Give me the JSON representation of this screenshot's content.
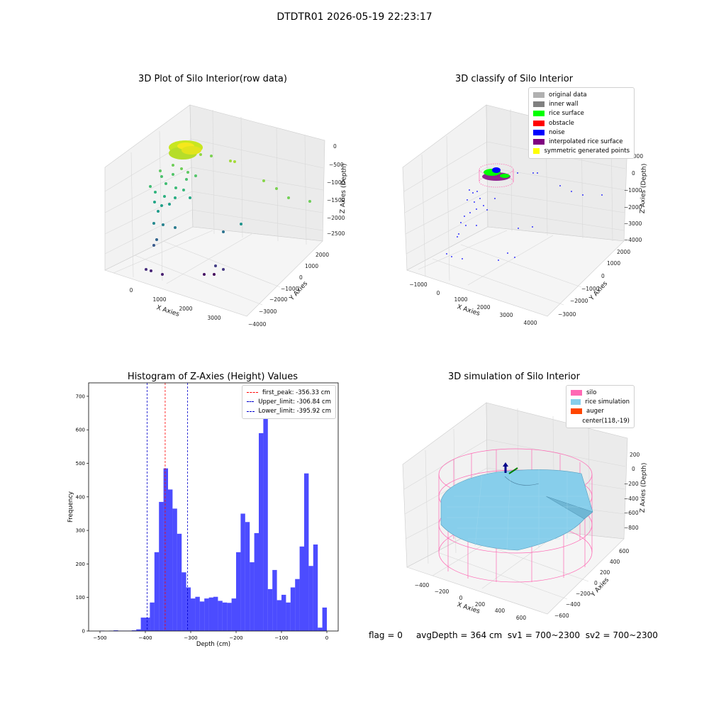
{
  "suptitle": "DTDTR01 2026-05-19 22:23:17",
  "chart_data": [
    {
      "id": "raw",
      "type": "scatter",
      "title": "3D Plot of Silo Interior(row data)",
      "xlabel": "X Axies",
      "ylabel": "Y Axies",
      "zlabel": "Z Axies (Depth)",
      "x_ticks": [
        "0",
        "1000",
        "2000",
        "3000"
      ],
      "y_ticks": [
        "2000",
        "1000",
        "0",
        "−1000",
        "−2000",
        "−3000",
        "−4000"
      ],
      "z_ticks": [
        "0",
        "−500",
        "−1000",
        "−1500",
        "−2000",
        "−2500"
      ],
      "colormap": "viridis"
    },
    {
      "id": "classify",
      "type": "scatter",
      "title": "3D classify of Silo Interior",
      "xlabel": "X Axies",
      "ylabel": "Y Axies",
      "zlabel": "Z Axies (Depth)",
      "x_ticks": [
        "−1000",
        "0",
        "1000",
        "2000",
        "3000",
        "4000"
      ],
      "y_ticks": [
        "2000",
        "1000",
        "0",
        "−1000",
        "−2000",
        "−3000"
      ],
      "z_ticks": [
        "1000",
        "0",
        "−1000",
        "−2000",
        "−3000",
        "−4000"
      ],
      "legend": [
        {
          "label": "original data",
          "color": "#b0b0b0"
        },
        {
          "label": "inner wall",
          "color": "#808080"
        },
        {
          "label": "rice surface",
          "color": "#00ff00"
        },
        {
          "label": "obstacle",
          "color": "#ff0000"
        },
        {
          "label": "noise",
          "color": "#0000ff"
        },
        {
          "label": "interpolated rice surface",
          "color": "#800080"
        },
        {
          "label": "symmetric generated points",
          "color": "#ffff00"
        }
      ]
    },
    {
      "id": "hist",
      "type": "bar",
      "title": "Histogram of Z-Axies (Height) Values",
      "xlabel": "Depth (cm)",
      "ylabel": "Frequency",
      "xlim": [
        -525,
        25
      ],
      "ylim": [
        0,
        740
      ],
      "x_ticks": [
        -500,
        -400,
        -300,
        -200,
        -100,
        0
      ],
      "x_tick_labels": [
        "−500",
        "−400",
        "−300",
        "−200",
        "−100",
        "0"
      ],
      "y_ticks": [
        0,
        100,
        200,
        300,
        400,
        500,
        600,
        700
      ],
      "y_tick_labels": [
        "0",
        "100",
        "200",
        "300",
        "400",
        "500",
        "600",
        "700"
      ],
      "bar_color": "#0000ff",
      "bin_start": -500,
      "bin_width": 10,
      "values": [
        1,
        0,
        1,
        2,
        1,
        1,
        1,
        2,
        5,
        40,
        40,
        85,
        235,
        385,
        485,
        422,
        365,
        290,
        175,
        130,
        97,
        102,
        88,
        97,
        100,
        102,
        90,
        85,
        84,
        97,
        235,
        350,
        325,
        205,
        292,
        590,
        700,
        125,
        182,
        92,
        108,
        85,
        130,
        155,
        252,
        470,
        194,
        258,
        10,
        70
      ],
      "vlines": [
        {
          "x": -356.33,
          "color": "#ff0000",
          "label": "first_peak: -356.33 cm"
        },
        {
          "x": -306.84,
          "color": "#0000cc",
          "label": "Upper_limit: -306.84 cm"
        },
        {
          "x": -395.92,
          "color": "#0000cc",
          "label": "Lower_limit: -395.92 cm"
        }
      ],
      "legend_position": "top-right"
    },
    {
      "id": "sim",
      "type": "3d-surface",
      "title": "3D simulation of Silo Interior",
      "xlabel": "X Axies",
      "ylabel": "Y Axies",
      "zlabel": "Z Axies (Depth)",
      "x_ticks": [
        "−400",
        "−200",
        "0",
        "200",
        "400",
        "600"
      ],
      "y_ticks": [
        "600",
        "400",
        "200",
        "0",
        "−200",
        "−400",
        "−600"
      ],
      "z_ticks": [
        "200",
        "0",
        "−200",
        "−400",
        "−600",
        "−800"
      ],
      "legend": [
        {
          "label": "silo",
          "color": "#ff69b4"
        },
        {
          "label": "rice simulation",
          "color": "#87ceeb"
        },
        {
          "label": "auger",
          "color": "#ff4500"
        },
        {
          "label": "center(118,-19)",
          "color": ""
        }
      ]
    }
  ],
  "status": {
    "flag": "flag = 0",
    "avg": "avgDepth = 364 cm",
    "sv1": "sv1 = 700~2300",
    "sv2": "sv2 = 700~2300"
  }
}
